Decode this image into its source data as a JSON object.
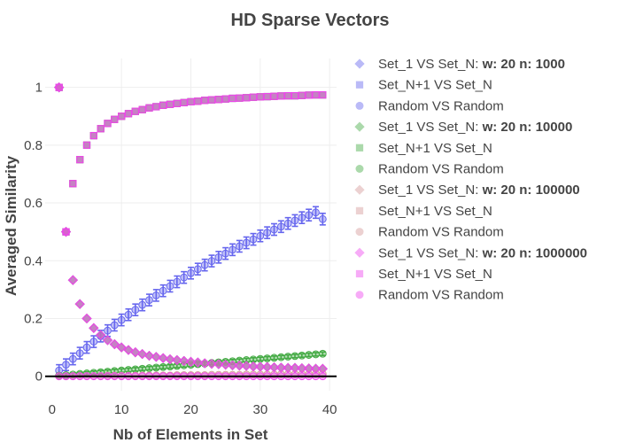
{
  "chart_data": {
    "type": "scatter",
    "title": "HD Sparse Vectors",
    "xlabel": "Nb of Elements in Set",
    "ylabel": "Averaged Similarity",
    "xlim": [
      -1,
      41
    ],
    "ylim": [
      -0.05,
      1.1
    ],
    "x_ticks": [
      "0",
      "10",
      "20",
      "30",
      "40"
    ],
    "y_ticks": [
      "0",
      "0.2",
      "0.4",
      "0.6",
      "0.8",
      "1"
    ],
    "x_tick_values": [
      0,
      10,
      20,
      30,
      40
    ],
    "y_tick_values": [
      0,
      0.2,
      0.4,
      0.6,
      0.8,
      1
    ],
    "grid": true,
    "legend_position": "right",
    "x": [
      1,
      2,
      3,
      4,
      5,
      6,
      7,
      8,
      9,
      10,
      11,
      12,
      13,
      14,
      15,
      16,
      17,
      18,
      19,
      20,
      21,
      22,
      23,
      24,
      25,
      26,
      27,
      28,
      29,
      30,
      31,
      32,
      33,
      34,
      35,
      36,
      37,
      38,
      39
    ],
    "groups": [
      {
        "label_prefix": "Set_1 VS Set_N: ",
        "label_bold": "w: 20 n: 1000",
        "color": "#6666ee",
        "series": [
          {
            "name": "Set_1 VS Set_N",
            "symbol": "diamond",
            "values": [
              1.0,
              0.5,
              0.333,
              0.25,
              0.2,
              0.167,
              0.143,
              0.125,
              0.111,
              0.1,
              0.091,
              0.083,
              0.077,
              0.071,
              0.067,
              0.063,
              0.059,
              0.056,
              0.053,
              0.05,
              0.048,
              0.045,
              0.043,
              0.042,
              0.04,
              0.038,
              0.037,
              0.036,
              0.034,
              0.033,
              0.032,
              0.031,
              0.03,
              0.029,
              0.029,
              0.028,
              0.027,
              0.026,
              0.026
            ]
          },
          {
            "name": "Set_N+1 VS Set_N",
            "symbol": "square",
            "values": [
              1.0,
              0.5,
              0.667,
              0.75,
              0.8,
              0.833,
              0.857,
              0.875,
              0.889,
              0.9,
              0.909,
              0.917,
              0.923,
              0.929,
              0.933,
              0.938,
              0.941,
              0.944,
              0.947,
              0.95,
              0.952,
              0.955,
              0.957,
              0.958,
              0.96,
              0.962,
              0.963,
              0.964,
              0.966,
              0.967,
              0.968,
              0.969,
              0.97,
              0.971,
              0.971,
              0.972,
              0.973,
              0.974,
              0.974
            ]
          },
          {
            "name": "Random VS Random",
            "symbol": "circle",
            "errorbar": 0.02,
            "values": [
              0.02,
              0.04,
              0.06,
              0.08,
              0.1,
              0.12,
              0.139,
              0.158,
              0.177,
              0.195,
              0.213,
              0.23,
              0.247,
              0.264,
              0.28,
              0.296,
              0.312,
              0.327,
              0.342,
              0.357,
              0.371,
              0.385,
              0.399,
              0.412,
              0.425,
              0.438,
              0.45,
              0.462,
              0.474,
              0.486,
              0.497,
              0.508,
              0.518,
              0.529,
              0.539,
              0.549,
              0.558,
              0.567,
              0.544
            ]
          }
        ]
      },
      {
        "label_prefix": "Set_1 VS Set_N: ",
        "label_bold": "w: 20 n: 10000",
        "color": "#44aa44",
        "series": [
          {
            "name": "Set_1 VS Set_N",
            "symbol": "diamond",
            "values": [
              1.0,
              0.5,
              0.333,
              0.25,
              0.2,
              0.167,
              0.143,
              0.125,
              0.111,
              0.1,
              0.091,
              0.083,
              0.077,
              0.071,
              0.067,
              0.063,
              0.059,
              0.056,
              0.053,
              0.05,
              0.048,
              0.045,
              0.043,
              0.042,
              0.04,
              0.038,
              0.037,
              0.036,
              0.034,
              0.033,
              0.032,
              0.031,
              0.03,
              0.029,
              0.029,
              0.028,
              0.027,
              0.026,
              0.026
            ]
          },
          {
            "name": "Set_N+1 VS Set_N",
            "symbol": "square",
            "values": [
              1.0,
              0.5,
              0.667,
              0.75,
              0.8,
              0.833,
              0.857,
              0.875,
              0.889,
              0.9,
              0.909,
              0.917,
              0.923,
              0.929,
              0.933,
              0.938,
              0.941,
              0.944,
              0.947,
              0.95,
              0.952,
              0.955,
              0.957,
              0.958,
              0.96,
              0.962,
              0.963,
              0.964,
              0.966,
              0.967,
              0.968,
              0.969,
              0.97,
              0.971,
              0.971,
              0.972,
              0.973,
              0.974,
              0.974
            ]
          },
          {
            "name": "Random VS Random",
            "symbol": "circle",
            "errorbar": 0.006,
            "values": [
              0.002,
              0.004,
              0.006,
              0.008,
              0.01,
              0.012,
              0.014,
              0.016,
              0.018,
              0.02,
              0.022,
              0.024,
              0.026,
              0.028,
              0.03,
              0.032,
              0.034,
              0.036,
              0.038,
              0.04,
              0.042,
              0.044,
              0.046,
              0.048,
              0.05,
              0.052,
              0.054,
              0.056,
              0.058,
              0.06,
              0.062,
              0.064,
              0.066,
              0.068,
              0.07,
              0.072,
              0.074,
              0.076,
              0.078
            ]
          }
        ]
      },
      {
        "label_prefix": "Set_1 VS Set_N: ",
        "label_bold": "w: 20 n: 100000",
        "color": "#d49a9a",
        "series": [
          {
            "name": "Set_1 VS Set_N",
            "symbol": "diamond",
            "values": [
              1.0,
              0.5,
              0.333,
              0.25,
              0.2,
              0.167,
              0.143,
              0.125,
              0.111,
              0.1,
              0.091,
              0.083,
              0.077,
              0.071,
              0.067,
              0.063,
              0.059,
              0.056,
              0.053,
              0.05,
              0.048,
              0.045,
              0.043,
              0.042,
              0.04,
              0.038,
              0.037,
              0.036,
              0.034,
              0.033,
              0.032,
              0.031,
              0.03,
              0.029,
              0.029,
              0.028,
              0.027,
              0.026,
              0.026
            ]
          },
          {
            "name": "Set_N+1 VS Set_N",
            "symbol": "square",
            "values": [
              1.0,
              0.5,
              0.667,
              0.75,
              0.8,
              0.833,
              0.857,
              0.875,
              0.889,
              0.9,
              0.909,
              0.917,
              0.923,
              0.929,
              0.933,
              0.938,
              0.941,
              0.944,
              0.947,
              0.95,
              0.952,
              0.955,
              0.957,
              0.958,
              0.96,
              0.962,
              0.963,
              0.964,
              0.966,
              0.967,
              0.968,
              0.969,
              0.97,
              0.971,
              0.971,
              0.972,
              0.973,
              0.974,
              0.974
            ]
          },
          {
            "name": "Random VS Random",
            "symbol": "circle",
            "values": [
              0.0,
              0.0,
              0.001,
              0.001,
              0.001,
              0.001,
              0.001,
              0.002,
              0.002,
              0.002,
              0.002,
              0.002,
              0.003,
              0.003,
              0.003,
              0.003,
              0.003,
              0.004,
              0.004,
              0.004,
              0.004,
              0.004,
              0.005,
              0.005,
              0.005,
              0.005,
              0.005,
              0.006,
              0.006,
              0.006,
              0.006,
              0.006,
              0.007,
              0.007,
              0.007,
              0.007,
              0.007,
              0.008,
              0.008
            ]
          }
        ]
      },
      {
        "label_prefix": "Set_1 VS Set_N: ",
        "label_bold": "w: 20 n: 1000000",
        "color": "#ee44ee",
        "series": [
          {
            "name": "Set_1 VS Set_N",
            "symbol": "diamond",
            "values": [
              1.0,
              0.5,
              0.333,
              0.25,
              0.2,
              0.167,
              0.143,
              0.125,
              0.111,
              0.1,
              0.091,
              0.083,
              0.077,
              0.071,
              0.067,
              0.063,
              0.059,
              0.056,
              0.053,
              0.05,
              0.048,
              0.045,
              0.043,
              0.042,
              0.04,
              0.038,
              0.037,
              0.036,
              0.034,
              0.033,
              0.032,
              0.031,
              0.03,
              0.029,
              0.029,
              0.028,
              0.027,
              0.026,
              0.026
            ]
          },
          {
            "name": "Set_N+1 VS Set_N",
            "symbol": "square",
            "values": [
              1.0,
              0.5,
              0.667,
              0.75,
              0.8,
              0.833,
              0.857,
              0.875,
              0.889,
              0.9,
              0.909,
              0.917,
              0.923,
              0.929,
              0.933,
              0.938,
              0.941,
              0.944,
              0.947,
              0.95,
              0.952,
              0.955,
              0.957,
              0.958,
              0.96,
              0.962,
              0.963,
              0.964,
              0.966,
              0.967,
              0.968,
              0.969,
              0.97,
              0.971,
              0.971,
              0.972,
              0.973,
              0.974,
              0.974
            ]
          },
          {
            "name": "Random VS Random",
            "symbol": "circle",
            "values": [
              0.0,
              0.0,
              0.0,
              0.0,
              0.0,
              0.0,
              0.0,
              0.0,
              0.0,
              0.0,
              0.0,
              0.0,
              0.0,
              0.0,
              0.0,
              0.0,
              0.0,
              0.0,
              0.0,
              0.0,
              0.0,
              0.0,
              0.0,
              0.0,
              0.0,
              0.0,
              0.0,
              0.0,
              0.0,
              0.0,
              0.0,
              0.0,
              0.0,
              0.0,
              0.0,
              0.0,
              0.0,
              0.0,
              0.0
            ]
          }
        ]
      }
    ]
  }
}
